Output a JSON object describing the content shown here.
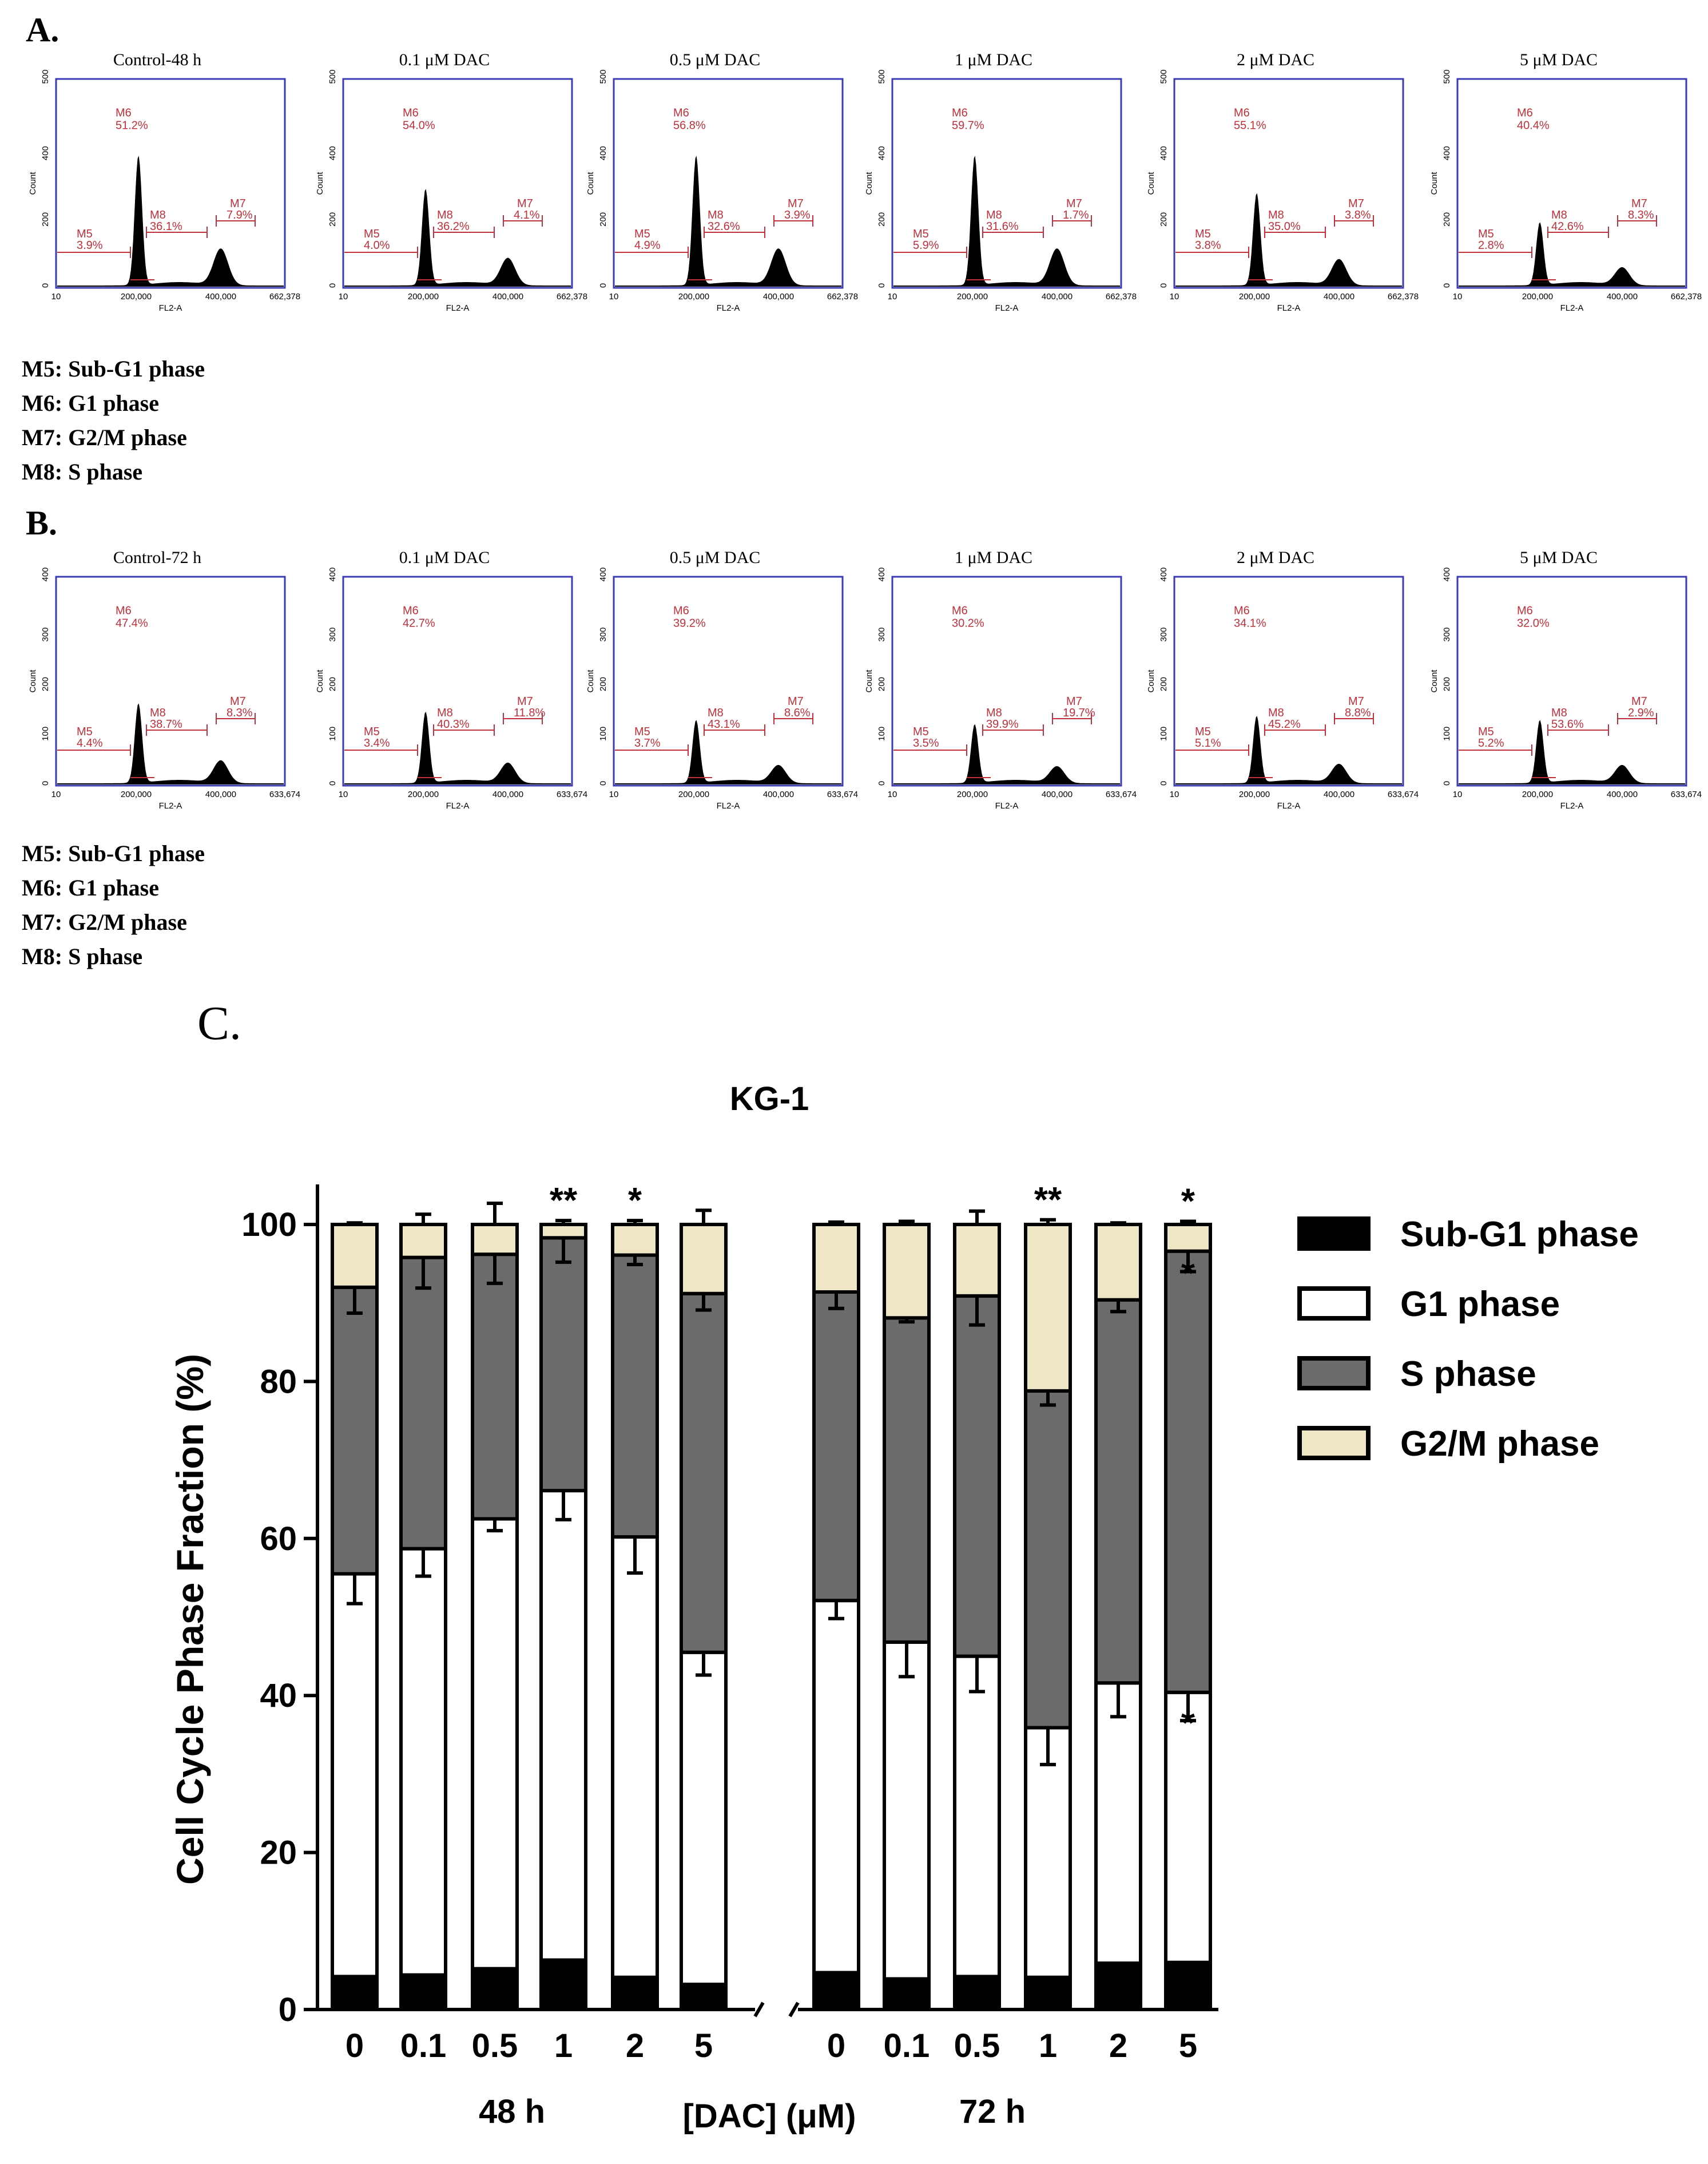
{
  "panel_a": {
    "label": "A.",
    "phase_legend": [
      "M5: Sub-G1 phase",
      "M6: G1 phase",
      "M7: G2/M phase",
      "M8: S  phase"
    ],
    "x_axis_label": "FL2-A",
    "y_axis_label": "Count",
    "x_ticks": [
      "10",
      "200,000",
      "400,000",
      "662,378"
    ],
    "y_ticks": [
      "0",
      "200",
      "400",
      "500"
    ],
    "plots": [
      {
        "title": "Control-48 h",
        "m5": "3.9%",
        "m6": "51.2%",
        "m7": "7.9%",
        "m8": "36.1%"
      },
      {
        "title": "0.1 μM DAC",
        "m5": "4.0%",
        "m6": "54.0%",
        "m7": "4.1%",
        "m8": "36.2%"
      },
      {
        "title": "0.5 μM DAC",
        "m5": "4.9%",
        "m6": "56.8%",
        "m7": "3.9%",
        "m8": "32.6%"
      },
      {
        "title": "1 μM DAC",
        "m5": "5.9%",
        "m6": "59.7%",
        "m7": "1.7%",
        "m8": "31.6%"
      },
      {
        "title": "2 μM DAC",
        "m5": "3.8%",
        "m6": "55.1%",
        "m7": "3.8%",
        "m8": "35.0%"
      },
      {
        "title": "5 μM DAC",
        "m5": "2.8%",
        "m6": "40.4%",
        "m7": "8.3%",
        "m8": "42.6%"
      }
    ]
  },
  "panel_b": {
    "label": "B.",
    "phase_legend": [
      "M5: Sub-G1 phase",
      "M6: G1 phase",
      "M7: G2/M phase",
      "M8: S  phase"
    ],
    "x_axis_label": "FL2-A",
    "y_axis_label": "Count",
    "x_ticks": [
      "10",
      "200,000",
      "400,000",
      "633,674"
    ],
    "y_ticks": [
      "0",
      "100",
      "200",
      "300",
      "400"
    ],
    "plots": [
      {
        "title": "Control-72 h",
        "m5": "4.4%",
        "m6": "47.4%",
        "m7": "8.3%",
        "m8": "38.7%"
      },
      {
        "title": "0.1 μM DAC",
        "m5": "3.4%",
        "m6": "42.7%",
        "m7": "11.8%",
        "m8": "40.3%"
      },
      {
        "title": "0.5 μM DAC",
        "m5": "3.7%",
        "m6": "39.2%",
        "m7": "8.6%",
        "m8": "43.1%"
      },
      {
        "title": "1 μM DAC",
        "m5": "3.5%",
        "m6": "30.2%",
        "m7": "19.7%",
        "m8": "39.9%"
      },
      {
        "title": "2 μM DAC",
        "m5": "5.1%",
        "m6": "34.1%",
        "m7": "8.8%",
        "m8": "45.2%"
      },
      {
        "title": "5 μM DAC",
        "m5": "5.2%",
        "m6": "32.0%",
        "m7": "2.9%",
        "m8": "53.6%"
      }
    ]
  },
  "panel_c": {
    "label": "C."
  },
  "colors": {
    "sub_g1": "#000000",
    "g1": "#ffffff",
    "s": "#6b6b6b",
    "g2m": "#efe6c6",
    "histogram_frame": "#3b3bb5",
    "marker": "#c0303a"
  },
  "chart_data": {
    "type": "bar",
    "stacked": true,
    "title": "KG-1",
    "ylabel": "Cell Cycle Phase Fraction (%)",
    "xlabel": "[DAC] (μM)",
    "ylim": [
      0,
      100
    ],
    "yticks": [
      "0",
      "20",
      "40",
      "60",
      "80",
      "100"
    ],
    "groups": [
      {
        "name": "48 h",
        "categories": [
          "0",
          "0.1",
          "0.5",
          "1",
          "2",
          "5"
        ]
      },
      {
        "name": "72 h",
        "categories": [
          "0",
          "0.1",
          "0.5",
          "1",
          "2",
          "5"
        ]
      }
    ],
    "series": [
      {
        "name": "Sub-G1 phase",
        "key": "sub_g1",
        "values": [
          4.2,
          4.4,
          5.2,
          6.3,
          4.1,
          3.2,
          4.7,
          3.9,
          4.2,
          4.1,
          5.9,
          6.0
        ],
        "errors": [
          0.3,
          0.4,
          0.3,
          0.8,
          0.3,
          0.2,
          0.4,
          0.4,
          0.5,
          0.8,
          0.7,
          1.5
        ]
      },
      {
        "name": "G1 phase",
        "key": "g1",
        "values": [
          51.3,
          54.3,
          57.3,
          59.8,
          56.1,
          42.3,
          47.4,
          42.9,
          40.8,
          31.8,
          35.7,
          34.4
        ],
        "errors": [
          3.8,
          3.5,
          1.5,
          3.7,
          4.6,
          2.9,
          2.3,
          4.4,
          4.5,
          4.7,
          4.3,
          3.6
        ]
      },
      {
        "name": "S phase",
        "key": "s",
        "values": [
          36.5,
          37.1,
          33.7,
          32.2,
          35.9,
          45.7,
          39.3,
          41.3,
          45.9,
          42.9,
          48.8,
          56.2
        ],
        "errors": [
          3.3,
          3.9,
          3.7,
          3.1,
          1.2,
          2.1,
          2.1,
          0.5,
          3.7,
          1.8,
          1.5,
          2.6
        ]
      },
      {
        "name": "G2/M phase",
        "key": "g2m",
        "values": [
          8.0,
          4.2,
          3.8,
          1.7,
          3.9,
          8.8,
          8.6,
          11.9,
          9.1,
          21.2,
          9.6,
          3.4
        ],
        "errors": [
          0.2,
          1.3,
          2.7,
          0.5,
          0.5,
          1.8,
          0.3,
          0.4,
          1.7,
          0.6,
          0.2,
          0.4
        ]
      }
    ],
    "significance": [
      {
        "group": 0,
        "index": 3,
        "position": "top",
        "label": "**"
      },
      {
        "group": 0,
        "index": 4,
        "position": "top",
        "label": "*"
      },
      {
        "group": 1,
        "index": 3,
        "position": "top",
        "label": "**"
      },
      {
        "group": 1,
        "index": 5,
        "position": "top",
        "label": "*"
      },
      {
        "group": 1,
        "index": 5,
        "position": "s_top",
        "label": "*"
      },
      {
        "group": 1,
        "index": 5,
        "position": "g1_top",
        "label": "*"
      }
    ]
  }
}
